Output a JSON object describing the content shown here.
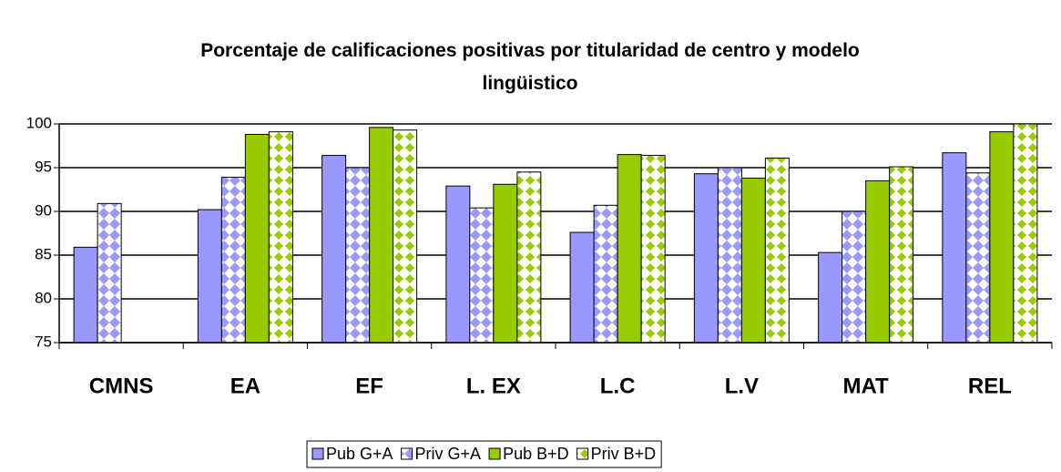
{
  "chart_data": {
    "type": "bar",
    "title": "Porcentaje de calificaciones positivas por titularidad de centro y modelo lingüistico",
    "categories": [
      "CMNS",
      "EA",
      "EF",
      "L. EX",
      "L.C",
      "L.V",
      "MAT",
      "REL"
    ],
    "series": [
      {
        "name": "Pub G+A",
        "color": "#9999ff",
        "values": [
          85.9,
          90.2,
          96.4,
          92.9,
          87.6,
          94.3,
          85.3,
          96.7
        ]
      },
      {
        "name": "Priv G+A",
        "color": "#9999ff",
        "pattern": true,
        "values": [
          90.9,
          93.9,
          95.0,
          90.4,
          90.7,
          95.0,
          90.0,
          94.4
        ]
      },
      {
        "name": "Pub B+D",
        "color": "#99cc00",
        "values": [
          null,
          98.8,
          99.6,
          93.1,
          96.5,
          93.8,
          93.5,
          99.1
        ]
      },
      {
        "name": "Priv B+D",
        "color": "#99cc00",
        "pattern": true,
        "values": [
          null,
          99.1,
          99.3,
          94.5,
          96.4,
          96.1,
          95.1,
          100
        ]
      }
    ],
    "ylim": [
      75,
      100
    ],
    "yticks": [
      75,
      80,
      85,
      90,
      95,
      100
    ],
    "grid": true,
    "legend": "bottom"
  }
}
